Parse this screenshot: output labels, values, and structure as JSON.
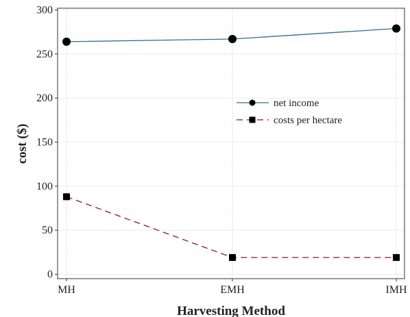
{
  "chart_data": {
    "type": "line",
    "title": "",
    "xlabel": "Harvesting Method",
    "ylabel": "cost ($)",
    "categories": [
      "MH",
      "EMH",
      "IMH"
    ],
    "ylim": [
      -5,
      302
    ],
    "yticks": [
      0,
      50,
      100,
      150,
      200,
      250,
      300
    ],
    "grid": true,
    "legend_position": "center-right",
    "series": [
      {
        "name": "net income",
        "values": [
          264,
          267,
          279
        ],
        "color": "#2e6f8e",
        "line_style": "solid",
        "marker": "circle"
      },
      {
        "name": "costs per hectare",
        "values": [
          88,
          19,
          19
        ],
        "color": "#8b1a1a",
        "line_style": "dashed",
        "marker": "square"
      }
    ]
  }
}
